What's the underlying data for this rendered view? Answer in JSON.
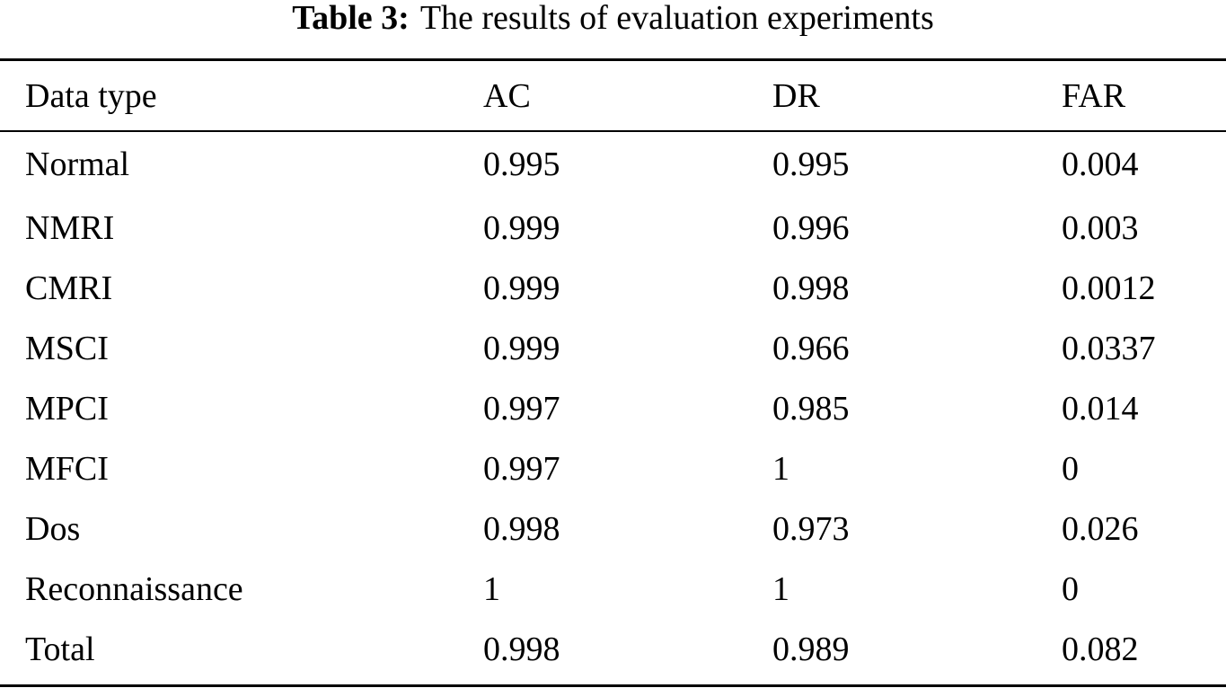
{
  "caption": {
    "label": "Table 3:",
    "text": "The results of evaluation experiments"
  },
  "table": {
    "columns": [
      "Data type",
      "AC",
      "DR",
      "FAR"
    ],
    "rows": [
      [
        "Normal",
        "0.995",
        "0.995",
        "0.004"
      ],
      [
        "NMRI",
        "0.999",
        "0.996",
        "0.003"
      ],
      [
        "CMRI",
        "0.999",
        "0.998",
        "0.0012"
      ],
      [
        "MSCI",
        "0.999",
        "0.966",
        "0.0337"
      ],
      [
        "MPCI",
        "0.997",
        "0.985",
        "0.014"
      ],
      [
        "MFCI",
        "0.997",
        "1",
        "0"
      ],
      [
        "Dos",
        "0.998",
        "0.973",
        "0.026"
      ],
      [
        "Reconnaissance",
        "1",
        "1",
        "0"
      ],
      [
        "Total",
        "0.998",
        "0.989",
        "0.082"
      ]
    ]
  }
}
